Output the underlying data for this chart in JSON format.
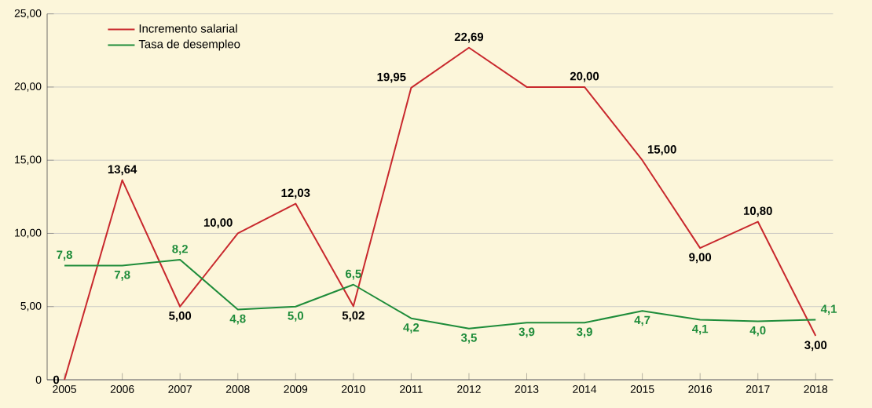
{
  "chart_data": {
    "type": "line",
    "categories": [
      "2005",
      "2006",
      "2007",
      "2008",
      "2009",
      "2010",
      "2011",
      "2012",
      "2013",
      "2014",
      "2015",
      "2016",
      "2017",
      "2018"
    ],
    "series": [
      {
        "name": "Incremento salarial",
        "color": "#c8282d",
        "values": [
          0,
          13.64,
          5.0,
          10.0,
          12.03,
          5.02,
          19.95,
          22.69,
          20.0,
          20.0,
          15.0,
          9.0,
          10.8,
          3.0
        ],
        "value_labels": [
          "0",
          "13,64",
          "5,00",
          "10,00",
          "12,03",
          "5,02",
          "19,95",
          "22,69",
          null,
          "20,00",
          "15,00",
          "9,00",
          "10,80",
          "3,00"
        ]
      },
      {
        "name": "Tasa de desempleo",
        "color": "#1e8c3a",
        "values": [
          7.8,
          7.8,
          8.2,
          4.8,
          5.0,
          6.5,
          4.2,
          3.5,
          3.9,
          3.9,
          4.7,
          4.1,
          4.0,
          4.1
        ],
        "value_labels": [
          "7,8",
          "7,8",
          "8,2",
          "4,8",
          "5,0",
          "6,5",
          "4,2",
          "3,5",
          "3,9",
          "3,9",
          "4,7",
          "4,1",
          "4,0",
          "4,1"
        ]
      }
    ],
    "ylim": [
      0,
      25
    ],
    "yticks": [
      0,
      {
        "value": 5,
        "label": "5,00"
      },
      {
        "value": 10,
        "label": "10,00"
      },
      {
        "value": 15,
        "label": "15,00"
      },
      {
        "value": 20,
        "label": "20,00"
      },
      {
        "value": 25,
        "label": "25,00"
      }
    ],
    "grid": "y",
    "legend": "top left",
    "marker": "none",
    "line_style": "solid"
  }
}
